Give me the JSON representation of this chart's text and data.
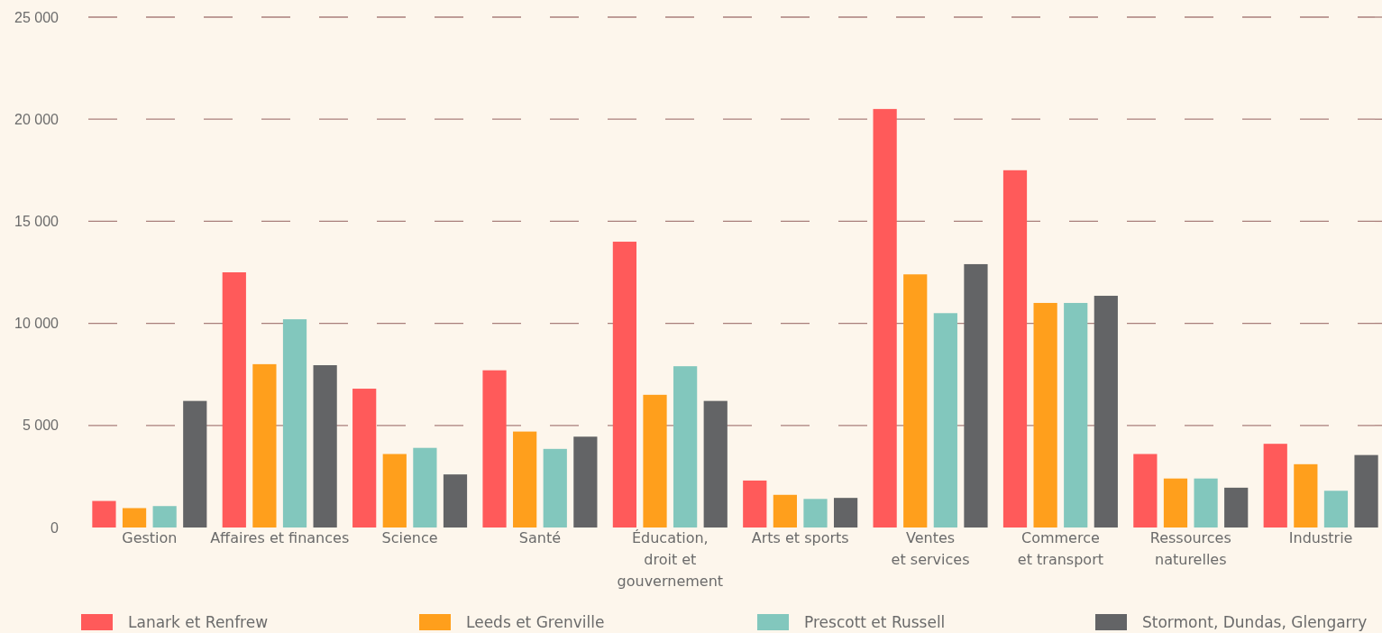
{
  "chart_data": {
    "type": "bar",
    "categories": [
      "Gestion",
      "Affaires et finances",
      "Science",
      "Santé",
      "Éducation,\ndroit et\ngouvernement",
      "Arts et sports",
      "Ventes\net services",
      "Commerce\net transport",
      "Ressources\nnaturelles",
      "Industrie"
    ],
    "series": [
      {
        "name": "Lanark et Renfrew",
        "color": "#ff5a5a",
        "values": [
          1300,
          12500,
          6800,
          7700,
          14000,
          2300,
          20500,
          17500,
          3600,
          4100
        ]
      },
      {
        "name": "Leeds et Grenville",
        "color": "#ff9f1c",
        "values": [
          950,
          8000,
          3600,
          4700,
          6500,
          1600,
          12400,
          11000,
          2400,
          3100
        ]
      },
      {
        "name": "Prescott et Russell",
        "color": "#82c7bd",
        "values": [
          1050,
          10200,
          3900,
          3850,
          7900,
          1400,
          10500,
          11000,
          2400,
          1800
        ]
      },
      {
        "name": "Stormont, Dundas, Glengarry",
        "color": "#636466",
        "values": [
          6200,
          7950,
          2600,
          4450,
          6200,
          1450,
          12900,
          11350,
          1950,
          3550
        ]
      }
    ],
    "ylim": [
      0,
      25000
    ],
    "yticks": [
      {
        "value": 0,
        "label": "0"
      },
      {
        "value": 5000,
        "label": "5 000"
      },
      {
        "value": 10000,
        "label": "10 000"
      },
      {
        "value": 15000,
        "label": "15 000"
      },
      {
        "value": 20000,
        "label": "20 000"
      },
      {
        "value": 25000,
        "label": "25 000"
      }
    ],
    "grid": "y",
    "legend": "bottom"
  }
}
